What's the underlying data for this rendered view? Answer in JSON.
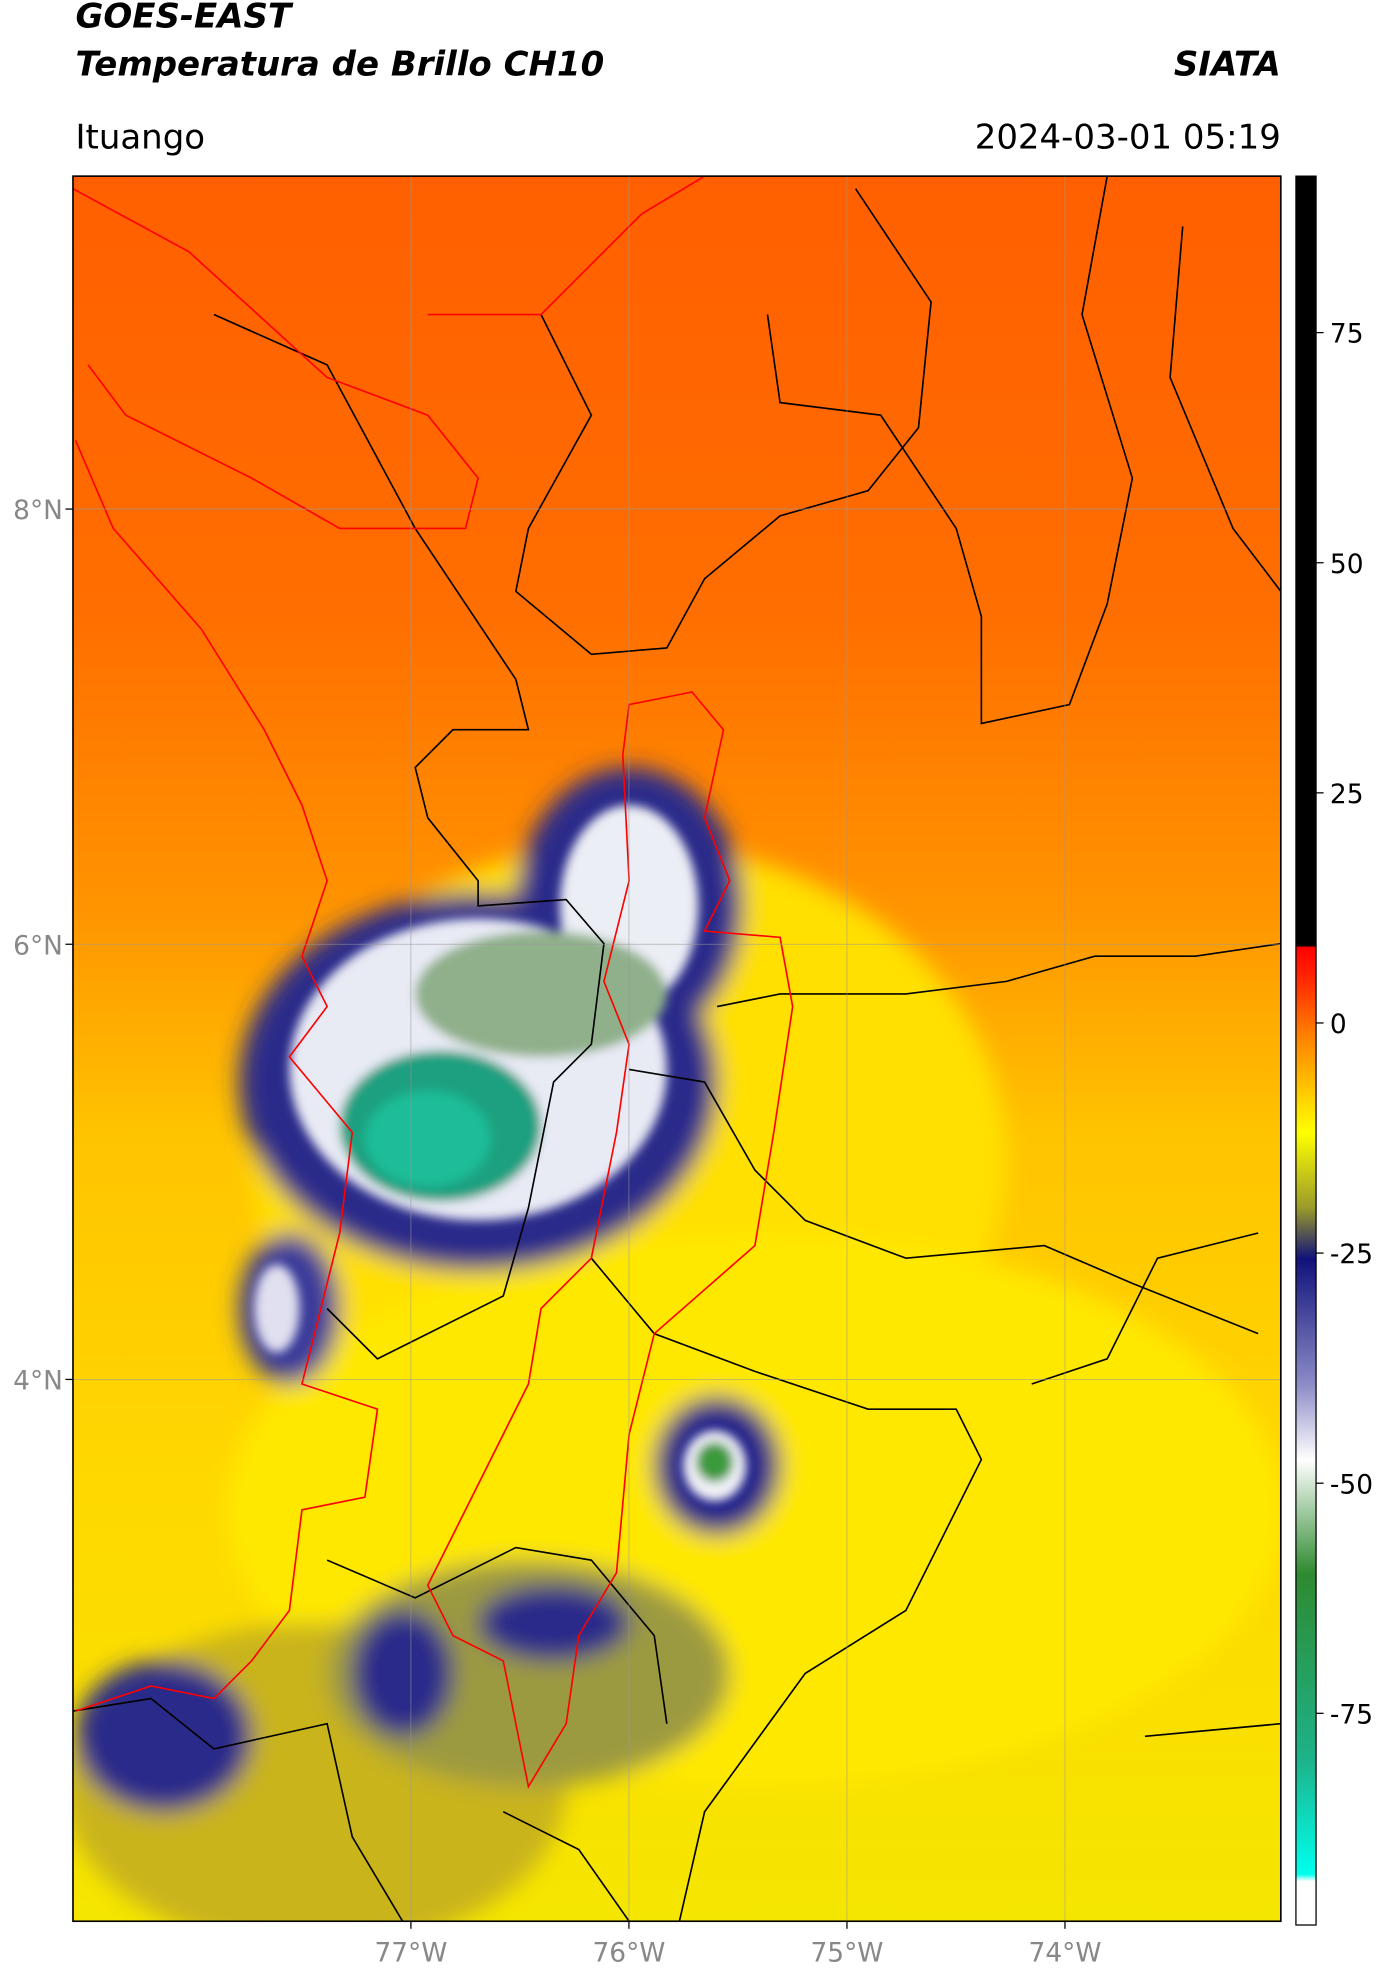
{
  "header": {
    "title_line1": "GOES-EAST",
    "title_line2": "Temperatura de Brillo CH10",
    "brand": "SIATA",
    "location": "Ituango",
    "datetime": "2024-03-01 05:19"
  },
  "map": {
    "xlim": [
      -78.55,
      -73.01
    ],
    "ylim": [
      1.51,
      9.53
    ],
    "xticks": [
      {
        "value": -77,
        "label": "77°W"
      },
      {
        "value": -76,
        "label": "76°W"
      },
      {
        "value": -75,
        "label": "75°W"
      },
      {
        "value": -74,
        "label": "74°W"
      }
    ],
    "yticks": [
      {
        "value": 8,
        "label": "8°N"
      },
      {
        "value": 6,
        "label": "6°N"
      },
      {
        "value": 4,
        "label": "4°N"
      }
    ],
    "grid": true
  },
  "colorbar": {
    "lim": [
      -98,
      92
    ],
    "ticks": [
      75,
      50,
      25,
      0,
      -25,
      -50,
      -75
    ]
  }
}
